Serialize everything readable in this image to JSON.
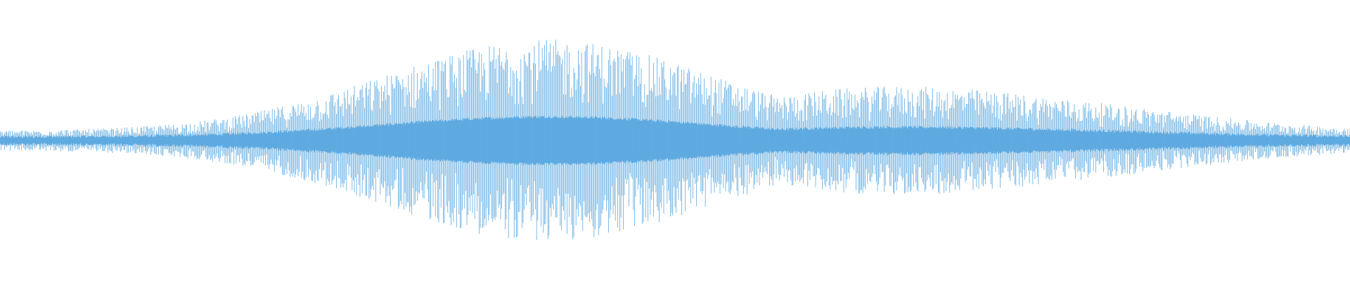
{
  "waveform": {
    "color": "#5faae0",
    "background": "#ffffff"
  }
}
